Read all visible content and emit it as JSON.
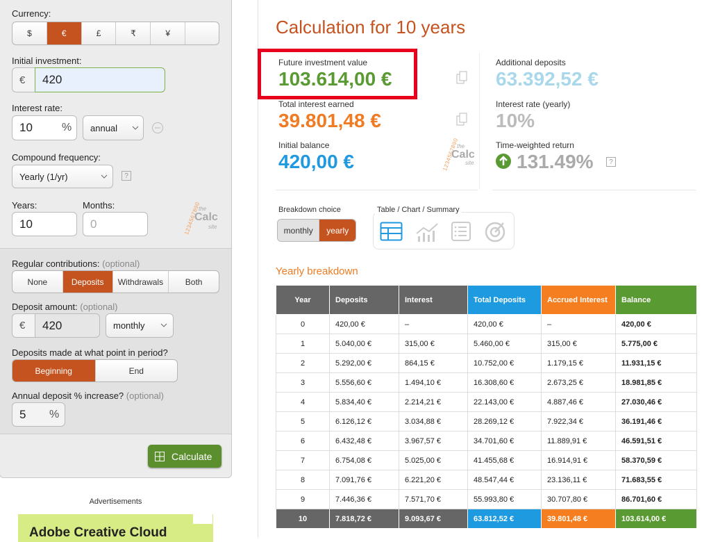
{
  "form": {
    "currency": {
      "label": "Currency:",
      "options": [
        "$",
        "€",
        "£",
        "₹",
        "¥"
      ]
    },
    "initial_investment": {
      "label": "Initial investment:",
      "prefix": "€",
      "value": "420"
    },
    "interest_rate": {
      "label": "Interest rate:",
      "value": "10",
      "unit": "%",
      "period": "annual"
    },
    "compound_frequency": {
      "label": "Compound frequency:",
      "value": "Yearly (1/yr)",
      "help": "?"
    },
    "years": {
      "label": "Years:",
      "value": "10"
    },
    "months": {
      "label": "Months:",
      "placeholder": "0"
    },
    "logo": {
      "digits": "1234567890",
      "the": "the",
      "name": "Calc",
      "site": "site"
    },
    "regular_contributions": {
      "label": "Regular contributions:",
      "note": "(optional)",
      "options": [
        "None",
        "Deposits",
        "Withdrawals",
        "Both"
      ]
    },
    "deposit_amount": {
      "label": "Deposit amount:",
      "note": "(optional)",
      "prefix": "€",
      "value": "420",
      "frequency": "monthly"
    },
    "deposit_timing": {
      "label": "Deposits made at what point in period?",
      "options": [
        "Beginning",
        "End"
      ]
    },
    "annual_increase": {
      "label": "Annual deposit % increase?",
      "note": "(optional)",
      "value": "5",
      "unit": "%"
    },
    "calculate": "Calculate"
  },
  "ads": {
    "label": "Advertisements",
    "banner": "Adobe Creative Cloud"
  },
  "results": {
    "title": "Calculation for 10 years",
    "summary": [
      {
        "label": "Future investment value",
        "value": "103.614,00 €"
      },
      {
        "label": "Total interest earned",
        "value": "39.801,48 €"
      },
      {
        "label": "Initial balance",
        "value": "420,00 €"
      },
      {
        "label": "Additional deposits",
        "value": "63.392,52 €"
      },
      {
        "label": "Interest rate (yearly)",
        "value": "10%"
      },
      {
        "label": "Time-weighted return",
        "value": "131.49%"
      }
    ],
    "help": "?",
    "breakdown": {
      "label": "Breakdown choice",
      "options": [
        "monthly",
        "yearly"
      ]
    },
    "view": {
      "label": "Table / Chart / Summary"
    },
    "table": {
      "title": "Yearly breakdown",
      "columns": [
        "Year",
        "Deposits",
        "Interest",
        "Total Deposits",
        "Accrued Interest",
        "Balance"
      ],
      "rows": [
        [
          "0",
          "420,00 €",
          "–",
          "420,00 €",
          "–",
          "420,00 €"
        ],
        [
          "1",
          "5.040,00 €",
          "315,00 €",
          "5.460,00 €",
          "315,00 €",
          "5.775,00 €"
        ],
        [
          "2",
          "5.292,00 €",
          "864,15 €",
          "10.752,00 €",
          "1.179,15 €",
          "11.931,15 €"
        ],
        [
          "3",
          "5.556,60 €",
          "1.494,10 €",
          "16.308,60 €",
          "2.673,25 €",
          "18.981,85 €"
        ],
        [
          "4",
          "5.834,40 €",
          "2.214,21 €",
          "22.143,00 €",
          "4.887,46 €",
          "27.030,46 €"
        ],
        [
          "5",
          "6.126,12 €",
          "3.034,88 €",
          "28.269,12 €",
          "7.922,34 €",
          "36.191,46 €"
        ],
        [
          "6",
          "6.432,48 €",
          "3.967,57 €",
          "34.701,60 €",
          "11.889,91 €",
          "46.591,51 €"
        ],
        [
          "7",
          "6.754,08 €",
          "5.025,00 €",
          "41.455,68 €",
          "16.914,91 €",
          "58.370,59 €"
        ],
        [
          "8",
          "7.091,76 €",
          "6.221,20 €",
          "48.547,44 €",
          "23.136,11 €",
          "71.683,55 €"
        ],
        [
          "9",
          "7.446,36 €",
          "7.571,70 €",
          "55.993,80 €",
          "30.707,80 €",
          "86.701,60 €"
        ],
        [
          "10",
          "7.818,72 €",
          "9.093,67 €",
          "63.812,52 €",
          "39.801,48 €",
          "103.614,00 €"
        ]
      ]
    }
  }
}
